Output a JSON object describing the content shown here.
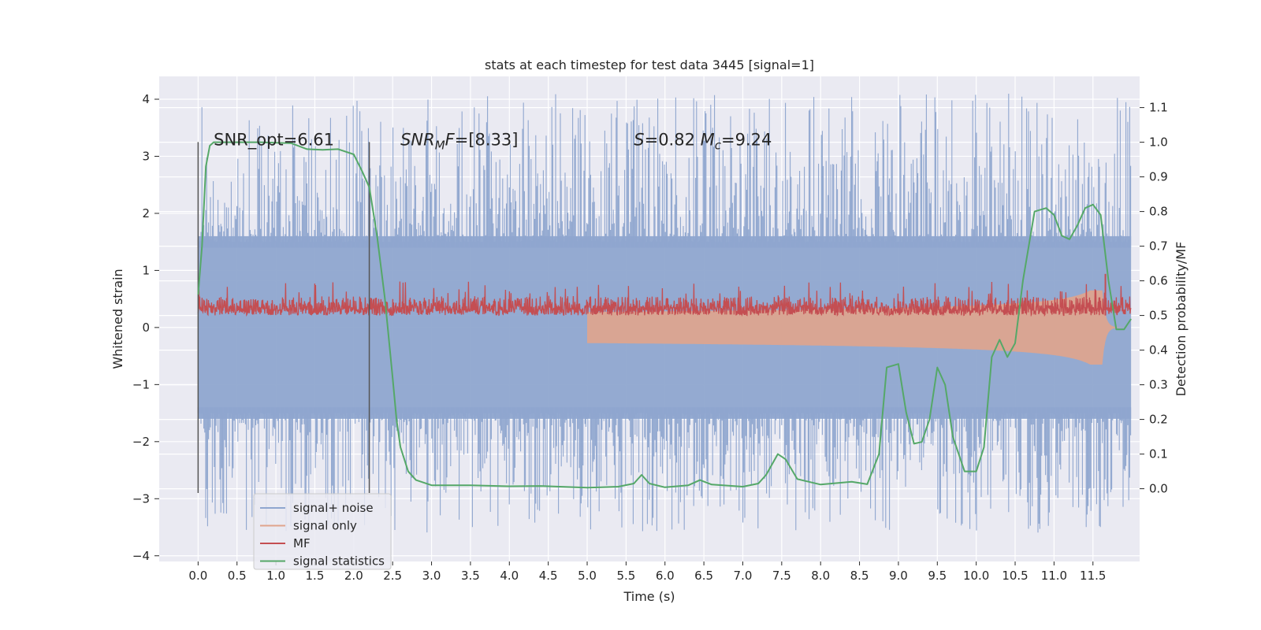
{
  "chart_data": {
    "type": "line",
    "title": "stats at each timestep for test data 3445 [signal=1]",
    "xlabel": "Time (s)",
    "ylabel": "Whitened strain",
    "y2label": "Detection probability/MF",
    "xlim": [
      -0.5,
      12.1
    ],
    "ylim": [
      -4.1,
      4.4
    ],
    "y2lim": [
      -0.21,
      1.19
    ],
    "x_ticks": [
      0.0,
      0.5,
      1.0,
      1.5,
      2.0,
      2.5,
      3.0,
      3.5,
      4.0,
      4.5,
      5.0,
      5.5,
      6.0,
      6.5,
      7.0,
      7.5,
      8.0,
      8.5,
      9.0,
      9.5,
      10.0,
      10.5,
      11.0,
      11.5
    ],
    "x_tick_labels": [
      "0.0",
      "0.5",
      "1.0",
      "1.5",
      "2.0",
      "2.5",
      "3.0",
      "3.5",
      "4.0",
      "4.5",
      "5.0",
      "5.5",
      "6.0",
      "6.5",
      "7.0",
      "7.5",
      "8.0",
      "8.5",
      "9.0",
      "9.5",
      "10.0",
      "10.5",
      "11.0",
      "11.5"
    ],
    "y_ticks": [
      4,
      3,
      2,
      1,
      0,
      -1,
      -2,
      -3,
      -4
    ],
    "y_tick_labels": [
      "4",
      "3",
      "2",
      "1",
      "0",
      "−1",
      "−2",
      "−3",
      "−4"
    ],
    "y2_ticks": [
      1.1,
      1.0,
      0.9,
      0.8,
      0.7,
      0.6,
      0.5,
      0.4,
      0.3,
      0.2,
      0.1,
      0.0
    ],
    "y2_tick_labels": [
      "1.1",
      "1.0",
      "0.9",
      "0.8",
      "0.7",
      "0.6",
      "0.5",
      "0.4",
      "0.3",
      "0.2",
      "0.1",
      "0.0"
    ],
    "grid": true,
    "legend_position": "lower-left",
    "colors": {
      "background": "#eaeaf2",
      "grid": "#ffffff",
      "noise": "#8fa6cf",
      "signal_only": "#e0a48c",
      "mf": "#c44e52",
      "statistics": "#55a868",
      "vline": "#555555"
    },
    "annotations": [
      {
        "text": "SNR_opt=6.61",
        "x": 0.2,
        "y": 3.3
      },
      {
        "text": "SNR_MF=[8.33]",
        "x": 2.6,
        "y": 3.3
      },
      {
        "text": "S=0.82   M_c=9.24",
        "x": 5.6,
        "y": 3.3
      }
    ],
    "vlines": [
      0.0,
      2.2
    ],
    "vline_range": [
      -2.9,
      3.25
    ],
    "series": [
      {
        "name": "signal+ noise",
        "color": "#8fa6cf",
        "x_range": [
          0.0,
          11.99
        ],
        "envelope": [
          -1.6,
          1.6
        ],
        "spikes_max": 4.1,
        "spikes_min": -3.6
      },
      {
        "name": "signal only",
        "color": "#e0a48c",
        "x_range": [
          0.0,
          11.99
        ],
        "amplitude_at_end": 0.65
      },
      {
        "name": "MF",
        "color": "#c44e52",
        "x_range": [
          0.0,
          11.99
        ],
        "values_range": [
          0.5,
          0.6
        ],
        "peak": {
          "x": 11.66,
          "y": 0.62
        }
      },
      {
        "name": "signal statistics",
        "color": "#55a868",
        "axis": "right",
        "x": [
          0.0,
          0.05,
          0.1,
          0.15,
          0.2,
          0.3,
          0.5,
          0.8,
          1.2,
          1.4,
          1.6,
          1.8,
          2.0,
          2.1,
          2.2,
          2.3,
          2.4,
          2.5,
          2.55,
          2.6,
          2.7,
          2.8,
          3.0,
          3.5,
          4.0,
          4.4,
          5.0,
          5.4,
          5.6,
          5.7,
          5.8,
          6.0,
          6.3,
          6.45,
          6.6,
          7.0,
          7.2,
          7.3,
          7.45,
          7.55,
          7.7,
          8.0,
          8.4,
          8.6,
          8.75,
          8.85,
          9.0,
          9.1,
          9.2,
          9.3,
          9.4,
          9.5,
          9.6,
          9.7,
          9.85,
          10.0,
          10.1,
          10.2,
          10.3,
          10.4,
          10.5,
          10.6,
          10.75,
          10.9,
          11.0,
          11.1,
          11.2,
          11.3,
          11.4,
          11.5,
          11.6,
          11.7,
          11.8,
          11.9,
          11.99
        ],
        "values": [
          0.56,
          0.7,
          0.93,
          0.99,
          1.0,
          1.0,
          1.0,
          1.0,
          0.997,
          0.98,
          0.978,
          0.98,
          0.965,
          0.92,
          0.87,
          0.73,
          0.55,
          0.32,
          0.2,
          0.12,
          0.05,
          0.025,
          0.01,
          0.01,
          0.007,
          0.008,
          0.003,
          0.006,
          0.015,
          0.04,
          0.015,
          0.004,
          0.01,
          0.025,
          0.012,
          0.006,
          0.015,
          0.04,
          0.1,
          0.085,
          0.028,
          0.012,
          0.02,
          0.013,
          0.1,
          0.35,
          0.36,
          0.22,
          0.13,
          0.135,
          0.2,
          0.35,
          0.3,
          0.15,
          0.05,
          0.05,
          0.12,
          0.38,
          0.43,
          0.38,
          0.42,
          0.6,
          0.8,
          0.81,
          0.79,
          0.73,
          0.72,
          0.76,
          0.81,
          0.82,
          0.79,
          0.6,
          0.46,
          0.46,
          0.49
        ]
      }
    ]
  },
  "legend": {
    "items": [
      {
        "label": "signal+ noise",
        "color": "#8fa6cf"
      },
      {
        "label": "signal only",
        "color": "#e0a48c"
      },
      {
        "label": "MF",
        "color": "#c44e52"
      },
      {
        "label": "signal statistics",
        "color": "#55a868"
      }
    ]
  }
}
